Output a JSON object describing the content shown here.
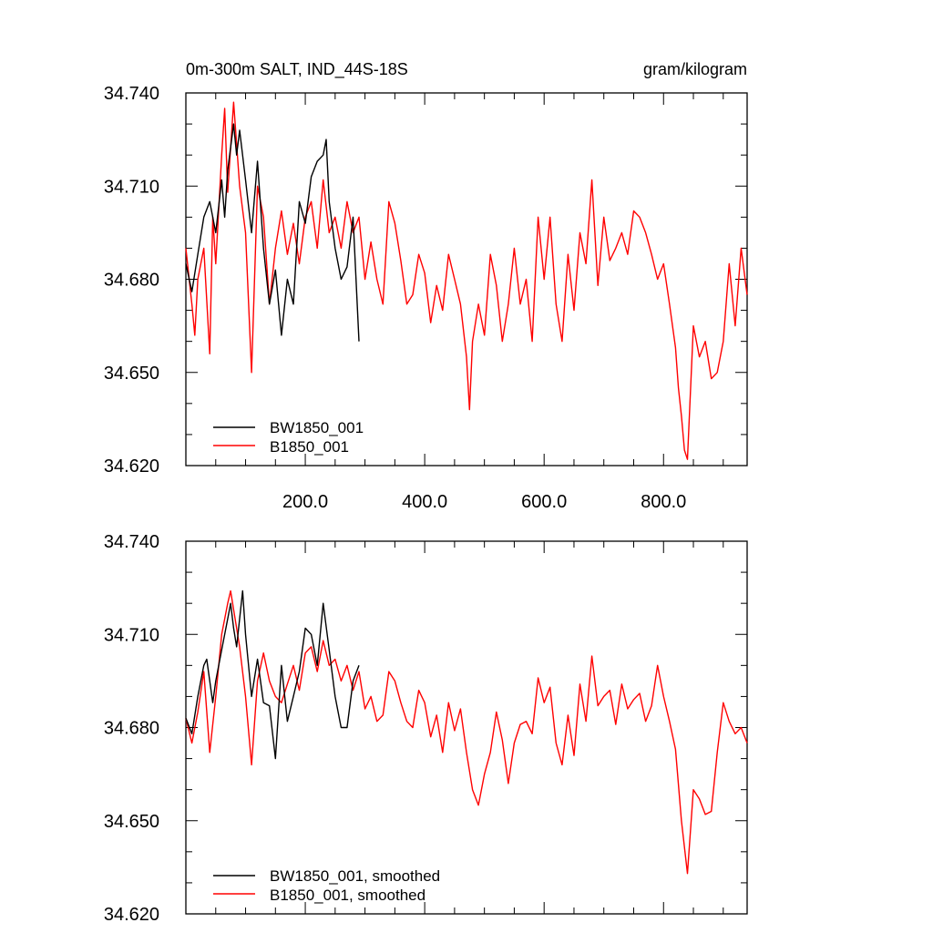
{
  "chart_data": [
    {
      "type": "line",
      "title": "0m-300m SALT, IND_44S-18S",
      "title_right": "gram/kilogram",
      "xlim": [
        0,
        940
      ],
      "ylim": [
        34.62,
        34.74
      ],
      "x_ticks": [
        "200.0",
        "400.0",
        "600.0",
        "800.0"
      ],
      "y_ticks": [
        "34.620",
        "34.650",
        "34.680",
        "34.710",
        "34.740"
      ],
      "legend_position": "bottom-left",
      "series": [
        {
          "name": "BW1850_001",
          "color": "#000000",
          "x": [
            0,
            10,
            20,
            30,
            40,
            50,
            60,
            65,
            70,
            80,
            85,
            90,
            100,
            110,
            120,
            130,
            140,
            150,
            160,
            170,
            180,
            190,
            200,
            210,
            220,
            230,
            235,
            240,
            250,
            260,
            270,
            280,
            290
          ],
          "y": [
            34.685,
            34.676,
            34.688,
            34.7,
            34.705,
            34.695,
            34.712,
            34.7,
            34.715,
            34.73,
            34.72,
            34.728,
            34.712,
            34.695,
            34.718,
            34.69,
            34.672,
            34.683,
            34.662,
            34.68,
            34.672,
            34.705,
            34.698,
            34.713,
            34.718,
            34.72,
            34.725,
            34.705,
            34.69,
            34.68,
            34.684,
            34.7,
            34.66
          ]
        },
        {
          "name": "B1850_001",
          "color": "#ff0000",
          "x": [
            0,
            10,
            15,
            20,
            30,
            40,
            45,
            50,
            60,
            65,
            70,
            80,
            90,
            100,
            110,
            120,
            130,
            140,
            150,
            160,
            170,
            180,
            190,
            200,
            210,
            220,
            230,
            240,
            250,
            260,
            270,
            280,
            290,
            300,
            310,
            320,
            330,
            340,
            350,
            360,
            370,
            380,
            390,
            400,
            410,
            420,
            430,
            440,
            450,
            460,
            470,
            475,
            480,
            490,
            500,
            510,
            520,
            530,
            540,
            550,
            560,
            570,
            580,
            590,
            600,
            610,
            620,
            630,
            640,
            650,
            660,
            670,
            680,
            690,
            700,
            710,
            720,
            730,
            740,
            750,
            760,
            770,
            780,
            790,
            800,
            810,
            820,
            825,
            830,
            835,
            840,
            850,
            860,
            870,
            880,
            890,
            900,
            910,
            920,
            930,
            940
          ],
          "y": [
            34.69,
            34.672,
            34.662,
            34.68,
            34.69,
            34.656,
            34.7,
            34.685,
            34.72,
            34.735,
            34.708,
            34.737,
            34.71,
            34.695,
            34.65,
            34.71,
            34.7,
            34.672,
            34.69,
            34.702,
            34.688,
            34.698,
            34.685,
            34.7,
            34.705,
            34.69,
            34.712,
            34.695,
            34.7,
            34.69,
            34.705,
            34.695,
            34.7,
            34.68,
            34.692,
            34.68,
            34.672,
            34.705,
            34.698,
            34.686,
            34.672,
            34.675,
            34.688,
            34.682,
            34.666,
            34.678,
            34.67,
            34.688,
            34.68,
            34.672,
            34.655,
            34.638,
            34.66,
            34.672,
            34.662,
            34.688,
            34.678,
            34.66,
            34.672,
            34.69,
            34.672,
            34.68,
            34.66,
            34.7,
            34.68,
            34.7,
            34.672,
            34.66,
            34.688,
            34.67,
            34.695,
            34.685,
            34.712,
            34.678,
            34.7,
            34.686,
            34.69,
            34.695,
            34.688,
            34.702,
            34.7,
            34.695,
            34.688,
            34.68,
            34.685,
            34.672,
            34.658,
            34.645,
            34.636,
            34.625,
            34.622,
            34.665,
            34.655,
            34.66,
            34.648,
            34.65,
            34.66,
            34.685,
            34.665,
            34.69,
            34.675
          ]
        }
      ]
    },
    {
      "type": "line",
      "xlim": [
        0,
        940
      ],
      "ylim": [
        34.62,
        34.74
      ],
      "y_ticks": [
        "34.620",
        "34.650",
        "34.680",
        "34.710",
        "34.740"
      ],
      "legend_position": "bottom-left",
      "series": [
        {
          "name": "BW1850_001, smoothed",
          "color": "#000000",
          "x": [
            0,
            10,
            20,
            30,
            35,
            40,
            45,
            50,
            60,
            70,
            75,
            80,
            85,
            90,
            95,
            100,
            110,
            120,
            130,
            140,
            150,
            160,
            170,
            180,
            190,
            200,
            210,
            220,
            230,
            240,
            250,
            260,
            270,
            280,
            290
          ],
          "y": [
            34.683,
            34.678,
            34.69,
            34.7,
            34.702,
            34.695,
            34.688,
            34.695,
            34.705,
            34.715,
            34.72,
            34.712,
            34.706,
            34.715,
            34.724,
            34.71,
            34.69,
            34.702,
            34.688,
            34.687,
            34.67,
            34.7,
            34.682,
            34.69,
            34.698,
            34.712,
            34.71,
            34.7,
            34.72,
            34.705,
            34.69,
            34.68,
            34.68,
            34.695,
            34.7
          ]
        },
        {
          "name": "B1850_001, smoothed",
          "color": "#ff0000",
          "x": [
            0,
            10,
            20,
            30,
            40,
            50,
            60,
            70,
            75,
            80,
            90,
            100,
            110,
            120,
            130,
            140,
            150,
            160,
            170,
            180,
            190,
            200,
            210,
            220,
            230,
            240,
            250,
            260,
            270,
            280,
            290,
            300,
            310,
            320,
            330,
            340,
            350,
            360,
            370,
            380,
            390,
            400,
            410,
            420,
            430,
            440,
            450,
            460,
            470,
            480,
            490,
            500,
            510,
            520,
            530,
            540,
            550,
            560,
            570,
            580,
            590,
            600,
            610,
            620,
            630,
            640,
            650,
            660,
            670,
            680,
            690,
            700,
            710,
            720,
            730,
            740,
            750,
            760,
            770,
            780,
            790,
            800,
            810,
            820,
            830,
            840,
            850,
            860,
            870,
            880,
            890,
            900,
            910,
            920,
            930,
            940
          ],
          "y": [
            34.683,
            34.675,
            34.685,
            34.698,
            34.672,
            34.69,
            34.71,
            34.72,
            34.724,
            34.718,
            34.706,
            34.69,
            34.668,
            34.695,
            34.704,
            34.695,
            34.69,
            34.688,
            34.694,
            34.7,
            34.692,
            34.704,
            34.706,
            34.698,
            34.708,
            34.7,
            34.702,
            34.695,
            34.7,
            34.692,
            34.698,
            34.686,
            34.69,
            34.682,
            34.684,
            34.698,
            34.695,
            34.688,
            34.682,
            34.68,
            34.692,
            34.688,
            34.677,
            34.684,
            34.672,
            34.688,
            34.679,
            34.686,
            34.672,
            34.66,
            34.655,
            34.665,
            34.672,
            34.685,
            34.676,
            34.662,
            34.675,
            34.681,
            34.682,
            34.678,
            34.696,
            34.688,
            34.693,
            34.675,
            34.668,
            34.684,
            34.671,
            34.694,
            34.682,
            34.703,
            34.687,
            34.69,
            34.692,
            34.681,
            34.694,
            34.686,
            34.689,
            34.691,
            34.682,
            34.687,
            34.7,
            34.69,
            34.682,
            34.673,
            34.65,
            34.633,
            34.66,
            34.657,
            34.652,
            34.653,
            34.672,
            34.688,
            34.682,
            34.678,
            34.68,
            34.675
          ]
        }
      ]
    }
  ]
}
